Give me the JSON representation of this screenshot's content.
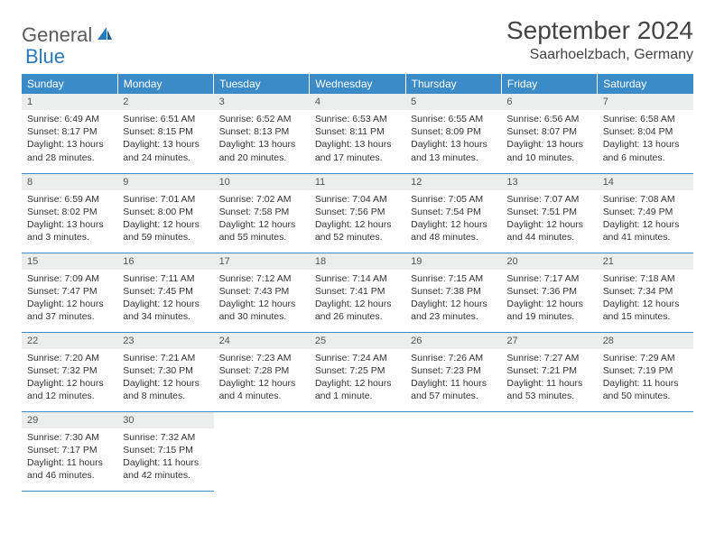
{
  "logo": {
    "word1": "General",
    "word2": "Blue"
  },
  "title": "September 2024",
  "location": "Saarhoelzbach, Germany",
  "colors": {
    "header_bg": "#3b8bc8",
    "header_text": "#ffffff",
    "daynum_bg": "#eceded",
    "border": "#3b8bc8",
    "logo_gray": "#5a5a5a",
    "logo_blue": "#2a7ab9"
  },
  "weekdays": [
    "Sunday",
    "Monday",
    "Tuesday",
    "Wednesday",
    "Thursday",
    "Friday",
    "Saturday"
  ],
  "days": [
    {
      "n": 1,
      "sunrise": "6:49 AM",
      "sunset": "8:17 PM",
      "daylight": "13 hours and 28 minutes."
    },
    {
      "n": 2,
      "sunrise": "6:51 AM",
      "sunset": "8:15 PM",
      "daylight": "13 hours and 24 minutes."
    },
    {
      "n": 3,
      "sunrise": "6:52 AM",
      "sunset": "8:13 PM",
      "daylight": "13 hours and 20 minutes."
    },
    {
      "n": 4,
      "sunrise": "6:53 AM",
      "sunset": "8:11 PM",
      "daylight": "13 hours and 17 minutes."
    },
    {
      "n": 5,
      "sunrise": "6:55 AM",
      "sunset": "8:09 PM",
      "daylight": "13 hours and 13 minutes."
    },
    {
      "n": 6,
      "sunrise": "6:56 AM",
      "sunset": "8:07 PM",
      "daylight": "13 hours and 10 minutes."
    },
    {
      "n": 7,
      "sunrise": "6:58 AM",
      "sunset": "8:04 PM",
      "daylight": "13 hours and 6 minutes."
    },
    {
      "n": 8,
      "sunrise": "6:59 AM",
      "sunset": "8:02 PM",
      "daylight": "13 hours and 3 minutes."
    },
    {
      "n": 9,
      "sunrise": "7:01 AM",
      "sunset": "8:00 PM",
      "daylight": "12 hours and 59 minutes."
    },
    {
      "n": 10,
      "sunrise": "7:02 AM",
      "sunset": "7:58 PM",
      "daylight": "12 hours and 55 minutes."
    },
    {
      "n": 11,
      "sunrise": "7:04 AM",
      "sunset": "7:56 PM",
      "daylight": "12 hours and 52 minutes."
    },
    {
      "n": 12,
      "sunrise": "7:05 AM",
      "sunset": "7:54 PM",
      "daylight": "12 hours and 48 minutes."
    },
    {
      "n": 13,
      "sunrise": "7:07 AM",
      "sunset": "7:51 PM",
      "daylight": "12 hours and 44 minutes."
    },
    {
      "n": 14,
      "sunrise": "7:08 AM",
      "sunset": "7:49 PM",
      "daylight": "12 hours and 41 minutes."
    },
    {
      "n": 15,
      "sunrise": "7:09 AM",
      "sunset": "7:47 PM",
      "daylight": "12 hours and 37 minutes."
    },
    {
      "n": 16,
      "sunrise": "7:11 AM",
      "sunset": "7:45 PM",
      "daylight": "12 hours and 34 minutes."
    },
    {
      "n": 17,
      "sunrise": "7:12 AM",
      "sunset": "7:43 PM",
      "daylight": "12 hours and 30 minutes."
    },
    {
      "n": 18,
      "sunrise": "7:14 AM",
      "sunset": "7:41 PM",
      "daylight": "12 hours and 26 minutes."
    },
    {
      "n": 19,
      "sunrise": "7:15 AM",
      "sunset": "7:38 PM",
      "daylight": "12 hours and 23 minutes."
    },
    {
      "n": 20,
      "sunrise": "7:17 AM",
      "sunset": "7:36 PM",
      "daylight": "12 hours and 19 minutes."
    },
    {
      "n": 21,
      "sunrise": "7:18 AM",
      "sunset": "7:34 PM",
      "daylight": "12 hours and 15 minutes."
    },
    {
      "n": 22,
      "sunrise": "7:20 AM",
      "sunset": "7:32 PM",
      "daylight": "12 hours and 12 minutes."
    },
    {
      "n": 23,
      "sunrise": "7:21 AM",
      "sunset": "7:30 PM",
      "daylight": "12 hours and 8 minutes."
    },
    {
      "n": 24,
      "sunrise": "7:23 AM",
      "sunset": "7:28 PM",
      "daylight": "12 hours and 4 minutes."
    },
    {
      "n": 25,
      "sunrise": "7:24 AM",
      "sunset": "7:25 PM",
      "daylight": "12 hours and 1 minute."
    },
    {
      "n": 26,
      "sunrise": "7:26 AM",
      "sunset": "7:23 PM",
      "daylight": "11 hours and 57 minutes."
    },
    {
      "n": 27,
      "sunrise": "7:27 AM",
      "sunset": "7:21 PM",
      "daylight": "11 hours and 53 minutes."
    },
    {
      "n": 28,
      "sunrise": "7:29 AM",
      "sunset": "7:19 PM",
      "daylight": "11 hours and 50 minutes."
    },
    {
      "n": 29,
      "sunrise": "7:30 AM",
      "sunset": "7:17 PM",
      "daylight": "11 hours and 46 minutes."
    },
    {
      "n": 30,
      "sunrise": "7:32 AM",
      "sunset": "7:15 PM",
      "daylight": "11 hours and 42 minutes."
    }
  ],
  "labels": {
    "sunrise": "Sunrise:",
    "sunset": "Sunset:",
    "daylight": "Daylight:"
  },
  "layout": {
    "start_weekday": 0,
    "total_cells": 35
  }
}
